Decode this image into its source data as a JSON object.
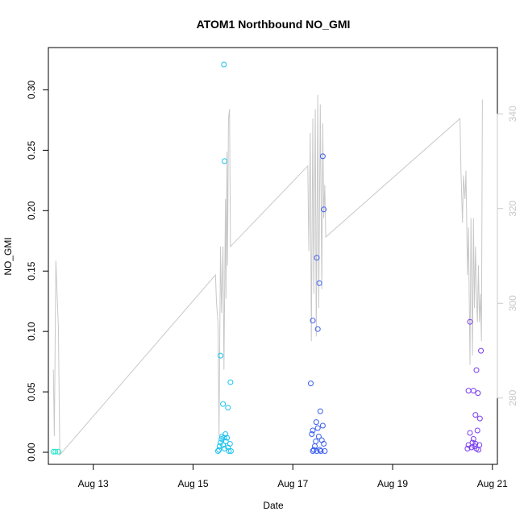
{
  "chart_data": {
    "type": "scatter",
    "title": "ATOM1 Northbound NO_GMI",
    "xlabel": "Date",
    "ylabel": "NO_GMI",
    "x_tick_labels": [
      "Aug 13",
      "Aug 15",
      "Aug 17",
      "Aug 19",
      "Aug 21"
    ],
    "x_ticks_day": [
      13,
      15,
      17,
      19,
      21
    ],
    "xlim_day": [
      12.1,
      21.1
    ],
    "ylim": [
      -0.01,
      0.335
    ],
    "y_ticks": [
      0.0,
      0.05,
      0.1,
      0.15,
      0.2,
      0.25,
      0.3
    ],
    "y_tick_labels": [
      "0.00",
      "0.05",
      "0.10",
      "0.15",
      "0.20",
      "0.25",
      "0.30"
    ],
    "y2_ticks": [
      280,
      300,
      320,
      340
    ],
    "y2_tick_labels": [
      "280",
      "300",
      "320",
      "340"
    ],
    "y2lim": [
      266,
      354
    ],
    "grid": false,
    "legend": "none",
    "colors": {
      "line": "#c8c8c8",
      "frame": "#000000",
      "right_axis": "#c8c8c8"
    },
    "scatter": [
      {
        "color": "#1ee3c8",
        "points": [
          [
            12.2,
            0.0005
          ],
          [
            12.24,
            0.0005
          ],
          [
            12.3,
            0.0005
          ]
        ]
      },
      {
        "color": "#1ec3f0",
        "points": [
          [
            15.5,
            0.001
          ],
          [
            15.52,
            0.002
          ],
          [
            15.53,
            0.005
          ],
          [
            15.55,
            0.008
          ],
          [
            15.57,
            0.011
          ],
          [
            15.58,
            0.013
          ],
          [
            15.6,
            0.006
          ],
          [
            15.62,
            0.012
          ],
          [
            15.63,
            0.003
          ],
          [
            15.65,
            0.015
          ],
          [
            15.66,
            0.009
          ],
          [
            15.68,
            0.012
          ],
          [
            15.7,
            0.004
          ],
          [
            15.72,
            0.001
          ],
          [
            15.74,
            0.007
          ],
          [
            15.76,
            0.001
          ],
          [
            15.55,
            0.08
          ],
          [
            15.6,
            0.04
          ],
          [
            15.7,
            0.037
          ],
          [
            15.75,
            0.058
          ],
          [
            15.63,
            0.241
          ],
          [
            15.62,
            0.321
          ]
        ]
      },
      {
        "color": "#3a5df0",
        "points": [
          [
            17.4,
            0.001
          ],
          [
            17.42,
            0.002
          ],
          [
            17.44,
            0.005
          ],
          [
            17.46,
            0.009
          ],
          [
            17.48,
            0.001
          ],
          [
            17.5,
            0.02
          ],
          [
            17.52,
            0.013
          ],
          [
            17.54,
            0.002
          ],
          [
            17.56,
            0.001
          ],
          [
            17.58,
            0.01
          ],
          [
            17.6,
            0.022
          ],
          [
            17.62,
            0.007
          ],
          [
            17.64,
            0.001
          ],
          [
            17.38,
            0.015
          ],
          [
            17.4,
            0.018
          ],
          [
            17.47,
            0.025
          ],
          [
            17.55,
            0.034
          ],
          [
            17.36,
            0.057
          ],
          [
            17.4,
            0.109
          ],
          [
            17.5,
            0.102
          ],
          [
            17.53,
            0.14
          ],
          [
            17.48,
            0.161
          ],
          [
            17.62,
            0.201
          ],
          [
            17.6,
            0.245
          ]
        ]
      },
      {
        "color": "#7a3cf0",
        "points": [
          [
            20.5,
            0.003
          ],
          [
            20.52,
            0.006
          ],
          [
            20.55,
            0.016
          ],
          [
            20.58,
            0.004
          ],
          [
            20.6,
            0.008
          ],
          [
            20.62,
            0.011
          ],
          [
            20.64,
            0.005
          ],
          [
            20.66,
            0.007
          ],
          [
            20.68,
            0.003
          ],
          [
            20.7,
            0.018
          ],
          [
            20.72,
            0.002
          ],
          [
            20.74,
            0.006
          ],
          [
            20.52,
            0.051
          ],
          [
            20.62,
            0.051
          ],
          [
            20.66,
            0.031
          ],
          [
            20.68,
            0.068
          ],
          [
            20.71,
            0.049
          ],
          [
            20.75,
            0.028
          ],
          [
            20.77,
            0.084
          ],
          [
            20.55,
            0.108
          ]
        ]
      }
    ],
    "line_series_y2": [
      [
        12.2,
        286
      ],
      [
        12.22,
        272
      ],
      [
        12.25,
        309
      ],
      [
        12.3,
        295
      ],
      [
        12.33,
        268
      ],
      [
        15.45,
        306
      ],
      [
        15.47,
        300
      ],
      [
        15.5,
        296
      ],
      [
        15.52,
        272
      ],
      [
        15.55,
        312
      ],
      [
        15.57,
        298
      ],
      [
        15.6,
        312
      ],
      [
        15.62,
        286
      ],
      [
        15.65,
        322
      ],
      [
        15.66,
        301
      ],
      [
        15.68,
        332
      ],
      [
        15.69,
        308
      ],
      [
        15.71,
        339
      ],
      [
        15.73,
        341
      ],
      [
        15.75,
        312
      ],
      [
        17.3,
        329
      ],
      [
        17.32,
        311
      ],
      [
        17.35,
        336
      ],
      [
        17.37,
        292
      ],
      [
        17.4,
        339
      ],
      [
        17.42,
        302
      ],
      [
        17.45,
        341
      ],
      [
        17.47,
        293
      ],
      [
        17.5,
        344
      ],
      [
        17.52,
        299
      ],
      [
        17.55,
        342
      ],
      [
        17.58,
        303
      ],
      [
        17.6,
        338
      ],
      [
        17.62,
        318
      ],
      [
        17.64,
        325
      ],
      [
        17.66,
        314
      ],
      [
        20.35,
        339
      ],
      [
        20.37,
        328
      ],
      [
        20.4,
        317
      ],
      [
        20.42,
        327
      ],
      [
        20.45,
        322
      ],
      [
        20.47,
        328
      ],
      [
        20.5,
        306
      ],
      [
        20.52,
        316
      ],
      [
        20.55,
        287
      ],
      [
        20.57,
        318
      ],
      [
        20.6,
        289
      ],
      [
        20.62,
        318
      ],
      [
        20.64,
        299
      ],
      [
        20.66,
        312
      ],
      [
        20.68,
        302
      ],
      [
        20.7,
        296
      ],
      [
        20.72,
        308
      ],
      [
        20.74,
        296
      ],
      [
        20.76,
        302
      ],
      [
        20.78,
        292
      ],
      [
        20.8,
        343
      ]
    ]
  }
}
